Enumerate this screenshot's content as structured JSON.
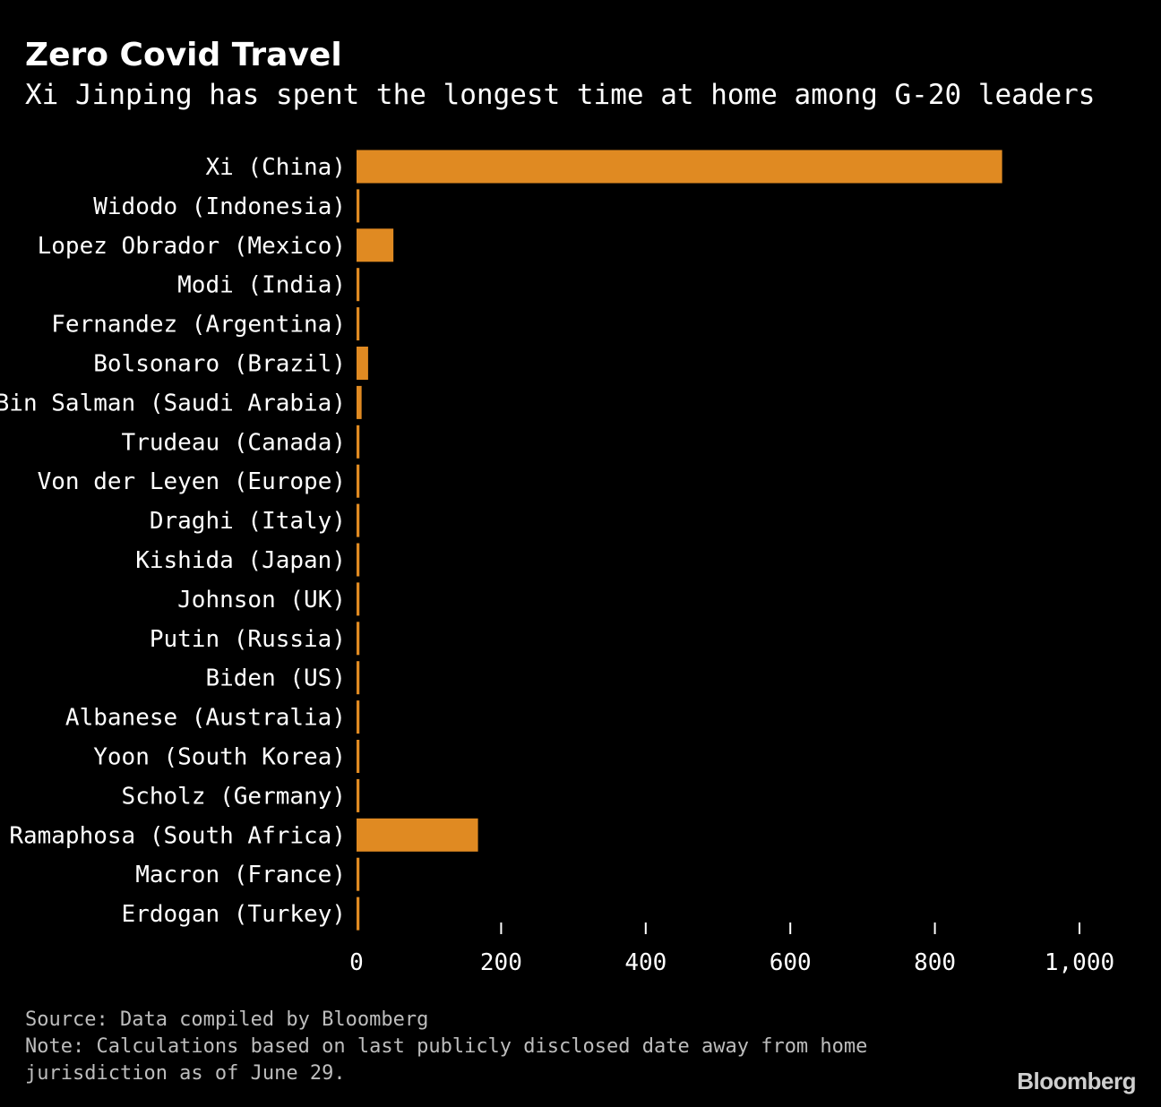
{
  "title": "Zero Covid Travel",
  "subtitle": "Xi Jinping has spent the longest time at home among G-20 leaders",
  "footer": {
    "source": "Source: Data compiled by Bloomberg",
    "note_line1": "Note: Calculations based on last publicly disclosed date away from home",
    "note_line2": "jurisdiction as of June 29."
  },
  "brand": "Bloomberg",
  "colors": {
    "bar": "#e08a22",
    "background": "#000000",
    "text": "#ffffff",
    "tick": "#ffffff"
  },
  "chart_data": {
    "type": "bar",
    "orientation": "horizontal",
    "title": "Zero Covid Travel",
    "subtitle": "Xi Jinping has spent the longest time at home among G-20 leaders",
    "xlabel": "",
    "ylabel": "",
    "xlim": [
      0,
      1000
    ],
    "xticks": [
      0,
      200,
      400,
      600,
      800,
      1000
    ],
    "xtick_labels": [
      "0",
      "200",
      "400",
      "600",
      "800",
      "1,000"
    ],
    "grid": false,
    "categories": [
      "Xi (China)",
      "Widodo (Indonesia)",
      "Lopez Obrador (Mexico)",
      "Modi (India)",
      "Fernandez (Argentina)",
      "Bolsonaro (Brazil)",
      "Bin Salman (Saudi Arabia)",
      "Trudeau (Canada)",
      "Von der Leyen (Europe)",
      "Draghi (Italy)",
      "Kishida (Japan)",
      "Johnson (UK)",
      "Putin (Russia)",
      "Biden (US)",
      "Albanese (Australia)",
      "Yoon (South Korea)",
      "Scholz (Germany)",
      "Ramaphosa (South Africa)",
      "Macron (France)",
      "Erdogan (Turkey)"
    ],
    "values": [
      893,
      4,
      51,
      4,
      4,
      16,
      7,
      4,
      4,
      4,
      4,
      4,
      4,
      4,
      4,
      4,
      4,
      168,
      4,
      4
    ]
  }
}
